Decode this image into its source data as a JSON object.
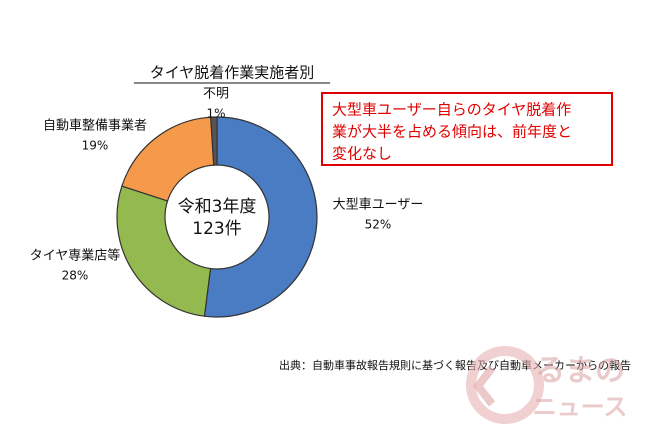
{
  "chart_data": {
    "type": "pie",
    "donut": true,
    "title": "タイヤ脱着作業実施者別",
    "categories": [
      "大型車ユーザー",
      "タイヤ専業店等",
      "自動車整備事業者",
      "不明"
    ],
    "values": [
      52,
      28,
      19,
      1
    ],
    "value_labels": [
      "52%",
      "28%",
      "19%",
      "1%"
    ],
    "colors": [
      "#4a7cc4",
      "#93b94f",
      "#f59a4a",
      "#555555"
    ],
    "center_label": [
      "令和3年度",
      "123件"
    ],
    "annotation": [
      "大型車ユーザー自らのタイヤ脱着作",
      "業が大半を占める傾向は、前年度と",
      "変化なし"
    ],
    "source": "出典：自動車事故報告規則に基づく報告及び自動車メーカーからの報告",
    "watermark": [
      "るまの",
      "ニュース"
    ]
  }
}
